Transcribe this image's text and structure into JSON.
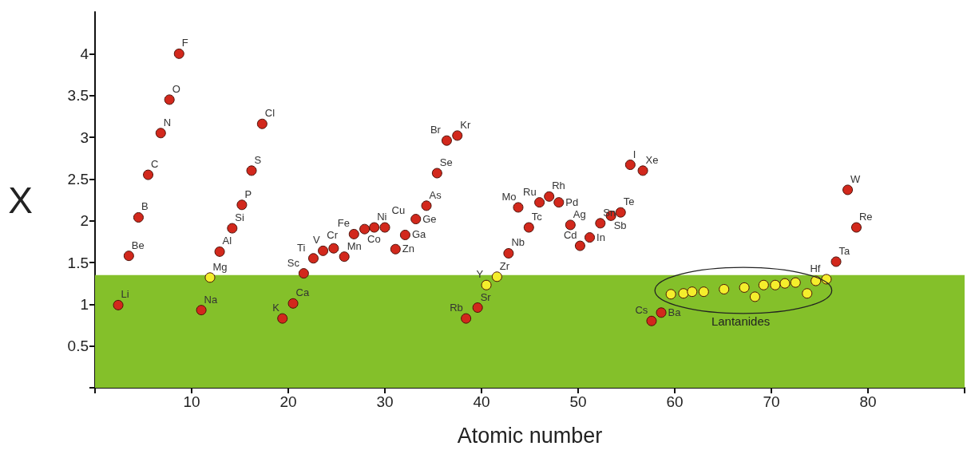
{
  "chart_data": {
    "type": "scatter",
    "xlabel": "Atomic number",
    "ylabel": "X",
    "xlim": [
      0,
      90
    ],
    "xticks": [
      {
        "value": 0,
        "label": null
      },
      10,
      20,
      30,
      40,
      50,
      60,
      70,
      80,
      {
        "value": 90,
        "label": null
      }
    ],
    "ylim": [
      0,
      4.5
    ],
    "yticks": [
      {
        "value": 0,
        "label": null
      },
      0.5,
      1,
      1.5,
      2,
      2.5,
      3,
      3.5,
      4
    ],
    "marker": "circle",
    "bands": [
      {
        "axis": "y",
        "from": 0,
        "to": 1.35,
        "color": "#84c02a"
      }
    ],
    "annotations": [
      "Lantanides"
    ],
    "series": [
      {
        "color": "#d2281c",
        "x": [
          2.4,
          3.5,
          4.5,
          5.5,
          6.8,
          7.7,
          8.7,
          11.0,
          12.9,
          14.2,
          15.2,
          16.2,
          17.3,
          19.4,
          20.5,
          21.6,
          22.6,
          23.6,
          24.7,
          25.8,
          26.8,
          27.9,
          28.9,
          30.0,
          31.1,
          32.1,
          33.2,
          34.3,
          35.4,
          36.4,
          37.5,
          38.4,
          39.6,
          42.8,
          43.8,
          44.9,
          46.0,
          47.0,
          48.0,
          49.2,
          50.2,
          51.2,
          52.3,
          53.4,
          54.4,
          55.4,
          56.7,
          57.6,
          58.6,
          76.7,
          77.9,
          78.8
        ],
        "values": [
          0.99,
          1.58,
          2.04,
          2.55,
          3.05,
          3.45,
          4.0,
          0.93,
          1.63,
          1.91,
          2.19,
          2.6,
          3.16,
          0.83,
          1.01,
          1.37,
          1.55,
          1.64,
          1.67,
          1.57,
          1.84,
          1.9,
          1.92,
          1.92,
          1.66,
          1.83,
          2.02,
          2.18,
          2.57,
          2.96,
          3.02,
          0.83,
          0.96,
          1.61,
          2.16,
          1.92,
          2.22,
          2.29,
          2.22,
          1.95,
          1.7,
          1.8,
          1.97,
          2.06,
          2.1,
          2.67,
          2.6,
          0.8,
          0.9,
          1.51,
          2.37,
          1.92
        ],
        "value_labels": [
          "Li",
          "Be",
          "B",
          "C",
          "N",
          "O",
          "F",
          "Na",
          "Al",
          "Si",
          "P",
          "S",
          "Cl",
          "K",
          "Ca",
          "Sc",
          "Ti",
          "V",
          "Cr",
          "Mn",
          "Fe",
          "Co",
          "Ni",
          "Cu",
          "Zn",
          "Ga",
          "Ge",
          "As",
          "Se",
          "Br",
          "Kr",
          "Rb",
          "Sr",
          "Nb",
          "Mo",
          "Tc",
          "Ru",
          "Rh",
          "Pd",
          "Ag",
          "Cd",
          "In",
          "Sn",
          "Sb",
          "Te",
          "I",
          "Xe",
          "Cs",
          "Ba",
          "Ta",
          "W",
          "Re"
        ]
      },
      {
        "color": "#f4ee2c",
        "x": [
          11.9,
          40.5,
          41.6,
          75.7
        ],
        "values": [
          1.32,
          1.23,
          1.33,
          1.3
        ],
        "value_labels": [
          "Mg",
          "Y",
          "Zr",
          "Hf"
        ]
      },
      {
        "color": "#f4ee2c",
        "x": [
          59.6,
          60.9,
          61.8,
          63.0,
          65.1,
          67.2,
          68.3,
          69.2,
          70.4,
          71.4,
          72.5,
          73.7,
          74.6
        ],
        "values": [
          1.12,
          1.13,
          1.15,
          1.15,
          1.18,
          1.2,
          1.09,
          1.23,
          1.23,
          1.25,
          1.26,
          1.13,
          1.28
        ]
      }
    ]
  }
}
